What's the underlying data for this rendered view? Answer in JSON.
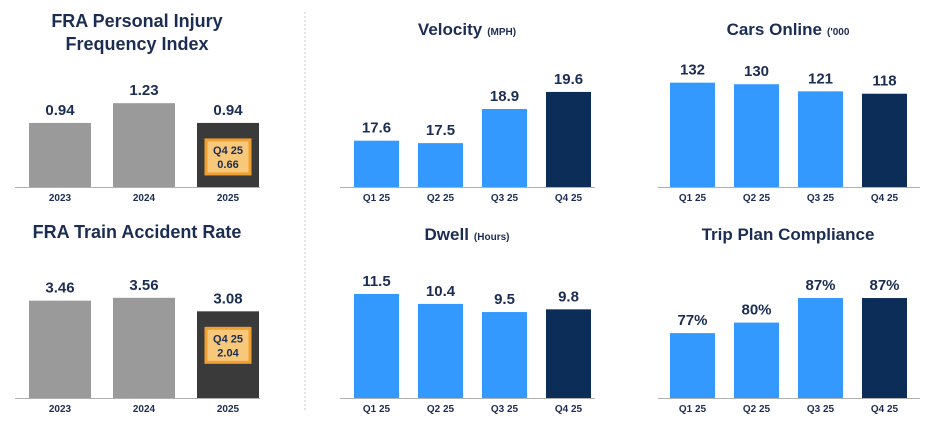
{
  "colors": {
    "gray_bar": "#9a9a9a",
    "dark_gray_bar": "#3a3a3a",
    "light_blue_bar": "#3399ff",
    "navy_bar": "#0c2d57",
    "inset_fill": "#f7c77a",
    "inset_stroke": "#f0a030",
    "text": "#1b2d52",
    "axis": "#b0b0b0",
    "divider": "#c8c8c8"
  },
  "chart_data": [
    {
      "id": "fra-injury",
      "type": "bar",
      "title": [
        "FRA Personal Injury",
        "Frequency Index"
      ],
      "unit": "",
      "categories": [
        "2023",
        "2024",
        "2025"
      ],
      "values": [
        0.94,
        1.23,
        0.94
      ],
      "labels": [
        "0.94",
        "1.23",
        "0.94"
      ],
      "bar_colors": [
        "gray_bar",
        "gray_bar",
        "dark_gray_bar"
      ],
      "ylim": [
        0,
        1.35
      ],
      "inset": {
        "bar_index": 2,
        "line1": "Q4 25",
        "line2": "0.66"
      }
    },
    {
      "id": "fra-accident",
      "type": "bar",
      "title": [
        "FRA Train Accident Rate"
      ],
      "unit": "",
      "categories": [
        "2023",
        "2024",
        "2025"
      ],
      "values": [
        3.46,
        3.56,
        3.08
      ],
      "labels": [
        "3.46",
        "3.56",
        "3.08"
      ],
      "bar_colors": [
        "gray_bar",
        "gray_bar",
        "dark_gray_bar"
      ],
      "ylim": [
        0,
        3.98
      ],
      "inset": {
        "bar_index": 2,
        "line1": "Q4 25",
        "line2": "2.04"
      }
    },
    {
      "id": "velocity",
      "type": "bar",
      "title": [
        "Velocity"
      ],
      "unit": "(MPH)",
      "categories": [
        "Q1 25",
        "Q2 25",
        "Q3 25",
        "Q4 25"
      ],
      "values": [
        17.6,
        17.5,
        18.9,
        19.6
      ],
      "labels": [
        "17.6",
        "17.5",
        "18.9",
        "19.6"
      ],
      "bar_colors": [
        "light_blue_bar",
        "light_blue_bar",
        "light_blue_bar",
        "navy_bar"
      ],
      "ylim": [
        15.7,
        20.5
      ]
    },
    {
      "id": "cars-online",
      "type": "bar",
      "title": [
        "Cars Online"
      ],
      "unit": "('000",
      "categories": [
        "Q1 25",
        "Q2 25",
        "Q3 25",
        "Q4 25"
      ],
      "values": [
        132,
        130,
        121,
        118
      ],
      "labels": [
        "132",
        "130",
        "121",
        "118"
      ],
      "bar_colors": [
        "light_blue_bar",
        "light_blue_bar",
        "light_blue_bar",
        "navy_bar"
      ],
      "ylim": [
        0,
        148
      ]
    },
    {
      "id": "dwell",
      "type": "bar",
      "title": [
        "Dwell"
      ],
      "unit": "(Hours)",
      "categories": [
        "Q1 25",
        "Q2 25",
        "Q3 25",
        "Q4 25"
      ],
      "values": [
        11.5,
        10.4,
        9.5,
        9.8
      ],
      "labels": [
        "11.5",
        "10.4",
        "9.5",
        "9.8"
      ],
      "bar_colors": [
        "light_blue_bar",
        "light_blue_bar",
        "light_blue_bar",
        "navy_bar"
      ],
      "ylim": [
        0,
        12.6
      ]
    },
    {
      "id": "trip-plan",
      "type": "bar",
      "title": [
        "Trip Plan Compliance"
      ],
      "unit": "",
      "categories": [
        "Q1 25",
        "Q2 25",
        "Q3 25",
        "Q4 25"
      ],
      "values": [
        77,
        80,
        87,
        87
      ],
      "labels": [
        "77%",
        "80%",
        "87%",
        "87%"
      ],
      "bar_colors": [
        "light_blue_bar",
        "light_blue_bar",
        "light_blue_bar",
        "navy_bar"
      ],
      "ylim": [
        58.5,
        91
      ]
    }
  ]
}
